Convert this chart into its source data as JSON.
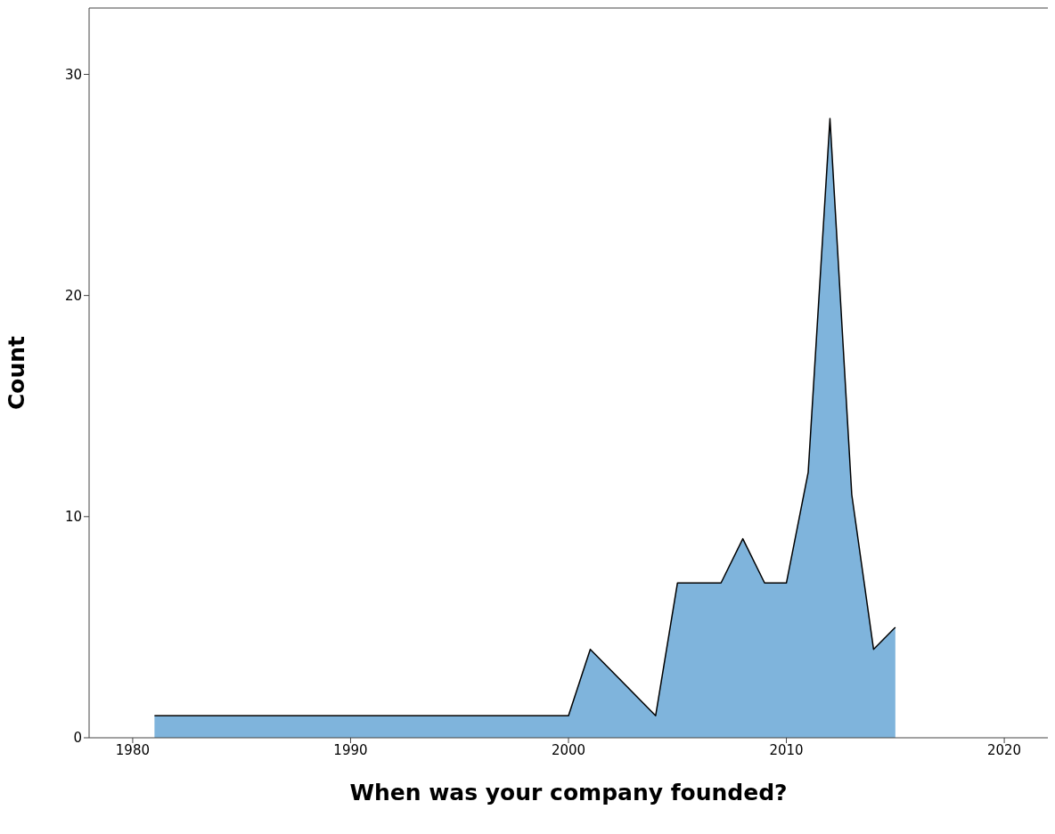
{
  "chart_data": {
    "type": "area",
    "xlabel": "When was your company founded?",
    "ylabel": "Count",
    "x": [
      1981,
      2000,
      2001,
      2004,
      2005,
      2007,
      2008,
      2009,
      2010,
      2011,
      2012,
      2013,
      2014,
      2015
    ],
    "series": [
      {
        "color": "#7fb4dc",
        "values": [
          1,
          1,
          4,
          1,
          7,
          7,
          9,
          7,
          7,
          12,
          28,
          11,
          4,
          5
        ]
      }
    ],
    "xlim": [
      1978,
      2022
    ],
    "xticks": [
      1980,
      1990,
      2000,
      2010,
      2020
    ],
    "ylim": [
      0,
      33
    ],
    "yticks": [
      0,
      10,
      20,
      30
    ]
  }
}
